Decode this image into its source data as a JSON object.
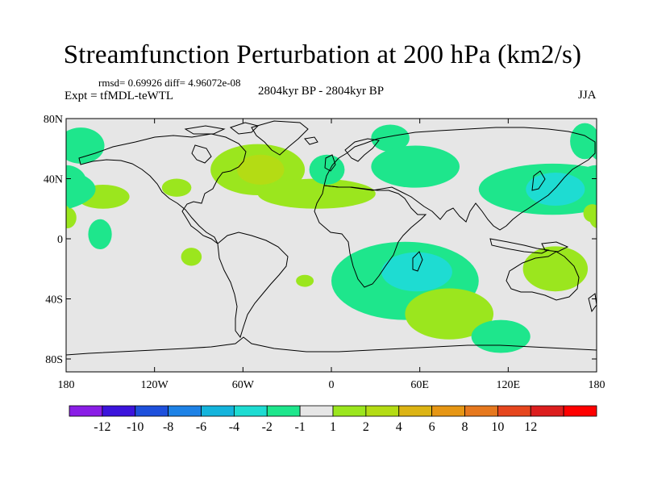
{
  "title": "Streamfunction Perturbation at 200 hPa (km2/s)",
  "stats": "rmsd= 0.69926 diff= 4.96072e-08",
  "experiment": "Expt = tfMDL-teWTL",
  "period": "2804kyr BP - 2804kyr BP",
  "season": "JJA",
  "lat_ticks": [
    "80N",
    "40N",
    "0",
    "40S",
    "80S"
  ],
  "lon_ticks": [
    "180",
    "120W",
    "60W",
    "0",
    "60E",
    "120E",
    "180"
  ],
  "colorbar": {
    "colors": [
      "#8a1ee6",
      "#3c14dc",
      "#1e50dc",
      "#1e82e6",
      "#14b4dc",
      "#1edcd2",
      "#1ee68c",
      "#e6e6e6",
      "#9be61e",
      "#b4dc14",
      "#dcb414",
      "#e69614",
      "#e6781e",
      "#e6461e",
      "#dc1e1e",
      "#ff0000"
    ],
    "labels": [
      "-12",
      "-10",
      "-8",
      "-6",
      "-4",
      "-2",
      "-1",
      "1",
      "2",
      "4",
      "6",
      "8",
      "10",
      "12"
    ]
  },
  "anomalies": [
    {
      "lon": -170,
      "lat": 62,
      "rlon": 16,
      "rlat": 12,
      "level": "-1"
    },
    {
      "lon": -180,
      "lat": 37,
      "rlon": 14,
      "rlat": 12,
      "level": "-1"
    },
    {
      "lon": -180,
      "lat": 35,
      "rlon": 6,
      "rlat": 6,
      "level": "-2"
    },
    {
      "lon": -155,
      "lat": 28,
      "rlon": 18,
      "rlat": 8,
      "level": "1"
    },
    {
      "lon": -179,
      "lat": 14,
      "rlon": 6,
      "rlat": 7,
      "level": "1"
    },
    {
      "lon": -157,
      "lat": 3,
      "rlon": 8,
      "rlat": 10,
      "level": "-1"
    },
    {
      "lon": -105,
      "lat": 34,
      "rlon": 10,
      "rlat": 6,
      "level": "1"
    },
    {
      "lon": -50,
      "lat": 46,
      "rlon": 32,
      "rlat": 17,
      "level": "1"
    },
    {
      "lon": -48,
      "lat": 46,
      "rlon": 16,
      "rlat": 10,
      "level": "2"
    },
    {
      "lon": -10,
      "lat": 30,
      "rlon": 40,
      "rlat": 10,
      "level": "1"
    },
    {
      "lon": -3,
      "lat": 46,
      "rlon": 12,
      "rlat": 10,
      "level": "-1"
    },
    {
      "lon": 40,
      "lat": 67,
      "rlon": 13,
      "rlat": 9,
      "level": "-1"
    },
    {
      "lon": 57,
      "lat": 48,
      "rlon": 30,
      "rlat": 14,
      "level": "-1"
    },
    {
      "lon": -95,
      "lat": -12,
      "rlon": 7,
      "rlat": 6,
      "level": "1"
    },
    {
      "lon": -18,
      "lat": -28,
      "rlon": 6,
      "rlat": 4,
      "level": "1"
    },
    {
      "lon": 50,
      "lat": -28,
      "rlon": 50,
      "rlat": 26,
      "level": "-1"
    },
    {
      "lon": 58,
      "lat": -22,
      "rlon": 24,
      "rlat": 13,
      "level": "-2"
    },
    {
      "lon": 80,
      "lat": -50,
      "rlon": 30,
      "rlat": 17,
      "level": "1"
    },
    {
      "lon": 115,
      "lat": -65,
      "rlon": 20,
      "rlat": 11,
      "level": "-1"
    },
    {
      "lon": 172,
      "lat": 65,
      "rlon": 10,
      "rlat": 12,
      "level": "-1"
    },
    {
      "lon": 150,
      "lat": 33,
      "rlon": 50,
      "rlat": 17,
      "level": "-1"
    },
    {
      "lon": 152,
      "lat": 33,
      "rlon": 20,
      "rlat": 11,
      "level": "-2"
    },
    {
      "lon": 177,
      "lat": 17,
      "rlon": 6,
      "rlat": 6,
      "level": "1"
    },
    {
      "lon": 152,
      "lat": -20,
      "rlon": 22,
      "rlat": 15,
      "level": "1"
    }
  ]
}
